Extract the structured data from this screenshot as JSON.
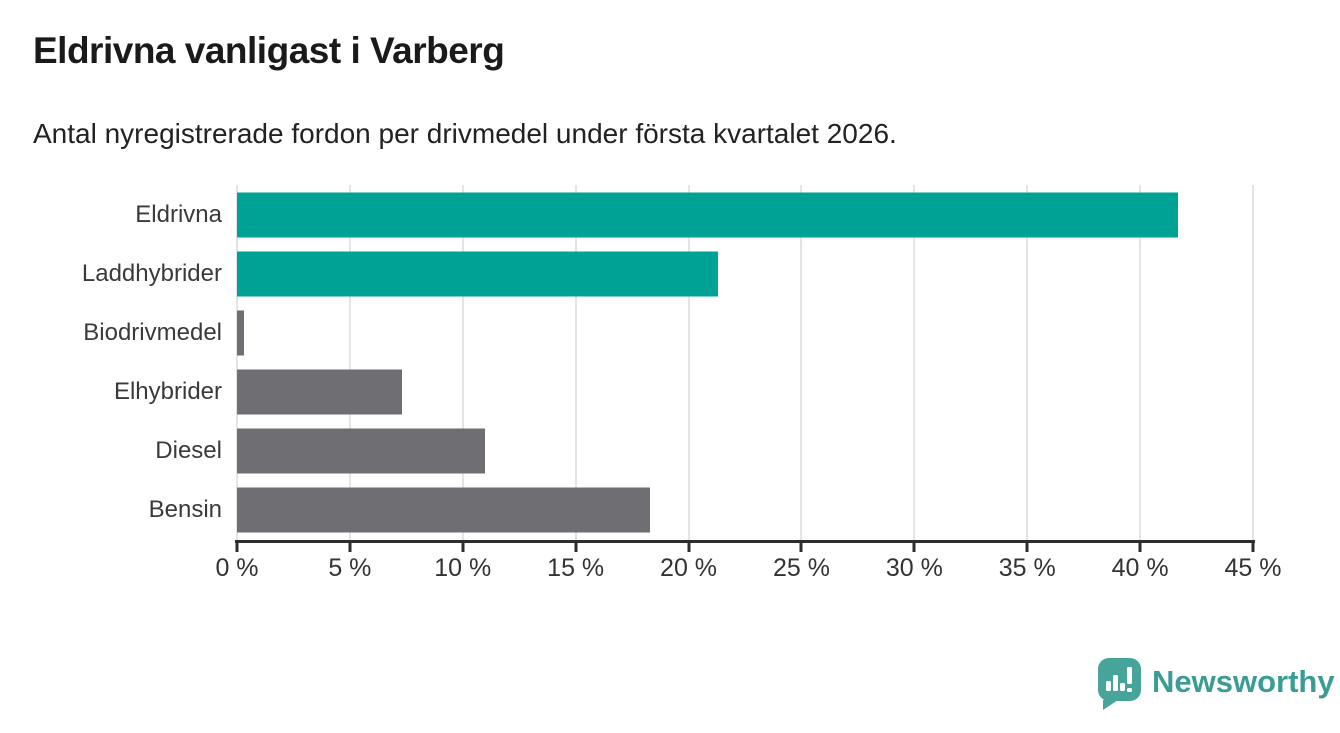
{
  "header": {
    "title": "Eldrivna vanligast i Varberg",
    "subtitle": "Antal nyregistrerade fordon per drivmedel under första kvartalet 2026."
  },
  "chart_data": {
    "type": "bar",
    "orientation": "horizontal",
    "title": "Eldrivna vanligast i Varberg",
    "subtitle": "Antal nyregistrerade fordon per drivmedel under första kvartalet 2026.",
    "categories": [
      "Eldrivna",
      "Laddhybrider",
      "Biodrivmedel",
      "Elhybrider",
      "Diesel",
      "Bensin"
    ],
    "values": [
      41.7,
      21.3,
      0.3,
      7.3,
      11.0,
      18.3
    ],
    "unit": "%",
    "bar_colors": [
      "#00a296",
      "#00a296",
      "#6e6e73",
      "#6e6e73",
      "#6e6e73",
      "#6e6e73"
    ],
    "xlim": [
      0,
      45
    ],
    "x_ticks": [
      0,
      5,
      10,
      15,
      20,
      25,
      30,
      35,
      40,
      45
    ],
    "x_tick_suffix": " %",
    "grid": true,
    "legend": false,
    "xlabel": "",
    "ylabel": ""
  },
  "colors": {
    "accent_teal": "#00a296",
    "bar_gray": "#6e6e73",
    "gridline": "#e4e4e4",
    "axis": "#2d2d2d",
    "text": "#333333",
    "logo_teal": "#47a49b",
    "brand_text_teal": "#3b9c95"
  },
  "footer": {
    "brand": "Newsworthy"
  }
}
